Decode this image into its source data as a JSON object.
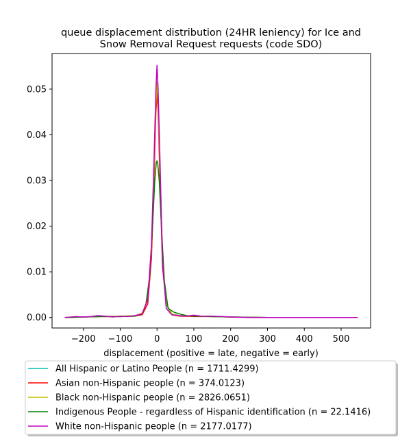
{
  "chart_data": {
    "type": "line",
    "title_lines": [
      "queue displacement distribution (24HR leniency) for Ice and",
      "Snow Removal Request  requests (code SDO)"
    ],
    "xlabel": "displacement (positive = late, negative = early)",
    "ylabel": "",
    "xlim": [
      -285,
      580
    ],
    "ylim": [
      -0.0023,
      0.0578
    ],
    "xticks": [
      -200,
      -100,
      0,
      100,
      200,
      300,
      400,
      500
    ],
    "xtick_labels": [
      "−200",
      "−100",
      "0",
      "100",
      "200",
      "300",
      "400",
      "500"
    ],
    "yticks": [
      0.0,
      0.01,
      0.02,
      0.03,
      0.04,
      0.05
    ],
    "ytick_labels": [
      "0.00",
      "0.01",
      "0.02",
      "0.03",
      "0.04",
      "0.05"
    ],
    "grid": false,
    "legend_position": "below plot",
    "series": [
      {
        "name": "All Hispanic or Latino People (n = 1711.4299)",
        "color": "#00bfbf",
        "x": [
          -250,
          -200,
          -150,
          -100,
          -60,
          -40,
          -25,
          -15,
          -8,
          -3,
          0,
          3,
          8,
          15,
          25,
          40,
          60,
          100,
          150,
          200,
          300,
          400,
          545
        ],
        "y": [
          0.0,
          0.0001,
          0.0003,
          0.0002,
          0.0003,
          0.0008,
          0.004,
          0.015,
          0.032,
          0.047,
          0.0512,
          0.047,
          0.032,
          0.012,
          0.003,
          0.0008,
          0.0004,
          0.0003,
          0.0002,
          0.0001,
          0.0,
          0.0,
          0.0
        ]
      },
      {
        "name": "Asian non-Hispanic people (n = 374.0123)",
        "color": "#ff0000",
        "x": [
          -250,
          -200,
          -150,
          -100,
          -60,
          -40,
          -25,
          -15,
          -8,
          -3,
          0,
          3,
          8,
          15,
          25,
          40,
          60,
          100,
          150,
          200,
          300,
          400,
          545
        ],
        "y": [
          0.0,
          0.0001,
          0.0002,
          0.0002,
          0.0003,
          0.0006,
          0.003,
          0.013,
          0.03,
          0.045,
          0.049,
          0.045,
          0.03,
          0.011,
          0.003,
          0.0006,
          0.0003,
          0.0002,
          0.0002,
          0.0001,
          0.0,
          0.0,
          0.0
        ]
      },
      {
        "name": "Black non-Hispanic people (n = 2826.0651)",
        "color": "#bfbf00",
        "x": [
          -250,
          -200,
          -150,
          -100,
          -60,
          -40,
          -25,
          -15,
          -8,
          -3,
          0,
          3,
          8,
          15,
          25,
          40,
          60,
          100,
          150,
          200,
          300,
          400,
          545
        ],
        "y": [
          0.0,
          0.0001,
          0.0003,
          0.0003,
          0.0004,
          0.001,
          0.004,
          0.015,
          0.033,
          0.047,
          0.0515,
          0.047,
          0.033,
          0.013,
          0.003,
          0.0008,
          0.0004,
          0.0003,
          0.0002,
          0.0001,
          0.0,
          0.0,
          0.0
        ]
      },
      {
        "name": "Indigenous People - regardless of Hispanic identification (n = 22.1416)",
        "color": "#008000",
        "x": [
          -250,
          -200,
          -150,
          -100,
          -60,
          -40,
          -30,
          -20,
          -12,
          -6,
          -2,
          0,
          2,
          6,
          12,
          20,
          30,
          45,
          60,
          80,
          100,
          150,
          200,
          300,
          400,
          545
        ],
        "y": [
          0.0,
          0.0001,
          0.0002,
          0.0002,
          0.0003,
          0.0008,
          0.003,
          0.009,
          0.02,
          0.03,
          0.0338,
          0.0343,
          0.0338,
          0.03,
          0.02,
          0.008,
          0.002,
          0.0012,
          0.0008,
          0.0004,
          0.0003,
          0.0002,
          0.0001,
          0.0,
          0.0,
          0.0
        ]
      },
      {
        "name": "White non-Hispanic people (n = 2177.0177)",
        "color": "#bf00bf",
        "x": [
          -250,
          -220,
          -200,
          -180,
          -160,
          -140,
          -120,
          -100,
          -80,
          -60,
          -40,
          -25,
          -15,
          -8,
          -3,
          0,
          3,
          8,
          15,
          25,
          40,
          60,
          80,
          100,
          120,
          150,
          180,
          200,
          250,
          300,
          400,
          545
        ],
        "y": [
          0.0,
          0.0002,
          0.0001,
          0.0002,
          0.0004,
          0.0003,
          0.0001,
          0.0003,
          0.0002,
          0.0004,
          0.0008,
          0.004,
          0.016,
          0.035,
          0.05,
          0.0552,
          0.05,
          0.035,
          0.012,
          0.002,
          0.0006,
          0.0004,
          0.0003,
          0.0005,
          0.0003,
          0.0003,
          0.0002,
          0.0001,
          0.0,
          0.0,
          0.0,
          0.0
        ]
      }
    ]
  }
}
